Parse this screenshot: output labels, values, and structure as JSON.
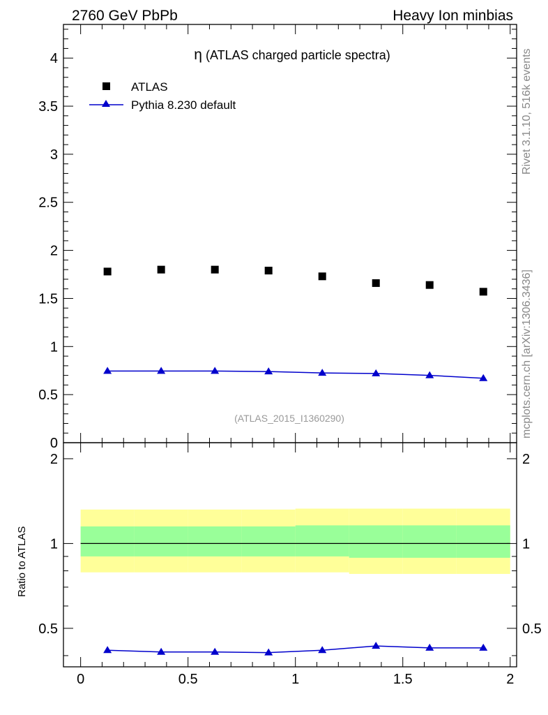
{
  "header": {
    "left": "2760 GeV PbPb",
    "right": "Heavy Ion minbias"
  },
  "side_labels": {
    "rivet": "Rivet 3.1.10,  516k events",
    "mcplots": "mcplots.cern.ch [arXiv:1306.3436]"
  },
  "chart_data": [
    {
      "type": "scatter",
      "panel": "main",
      "title_symbol": "η",
      "title_text": " (ATLAS charged particle spectra)",
      "watermark": "(ATLAS_2015_I1360290)",
      "xlim": [
        -0.08,
        2.03
      ],
      "ylim": [
        0,
        4.35
      ],
      "x_ticks": [
        0,
        0.5,
        1,
        1.5,
        2
      ],
      "y_ticks": [
        0,
        0.5,
        1,
        1.5,
        2,
        2.5,
        3,
        3.5,
        4
      ],
      "y_tick_labels": [
        "0",
        "0.5",
        "1",
        "1.5",
        "2",
        "2.5",
        "3",
        "3.5",
        "4"
      ],
      "legend": {
        "data_label": "ATLAS",
        "mc_label": "Pythia 8.230 default"
      },
      "series": [
        {
          "name": "ATLAS",
          "style": "marker",
          "color": "#000000",
          "x": [
            0.125,
            0.375,
            0.625,
            0.875,
            1.125,
            1.375,
            1.625,
            1.875
          ],
          "y": [
            1.78,
            1.8,
            1.8,
            1.79,
            1.73,
            1.66,
            1.64,
            1.57
          ]
        },
        {
          "name": "Pythia 8.230 default",
          "style": "line-triangle",
          "color": "#0000cc",
          "x": [
            0.125,
            0.375,
            0.625,
            0.875,
            1.125,
            1.375,
            1.625,
            1.875
          ],
          "y": [
            0.745,
            0.745,
            0.745,
            0.74,
            0.725,
            0.72,
            0.7,
            0.67
          ]
        }
      ]
    },
    {
      "type": "line",
      "panel": "ratio",
      "ylabel": "Ratio to ATLAS",
      "xlim": [
        -0.08,
        2.03
      ],
      "ylim_log": [
        0.365,
        2.28
      ],
      "x_ticks": [
        0,
        0.5,
        1,
        1.5,
        2
      ],
      "x_tick_labels": [
        "0",
        "0.5",
        "1",
        "1.5",
        "2"
      ],
      "y_ticks": [
        0.5,
        1,
        2
      ],
      "y_tick_labels": [
        "0.5",
        "1",
        "2"
      ],
      "bands": {
        "x_edges": [
          0,
          0.25,
          0.5,
          0.75,
          1,
          1.25,
          1.5,
          1.75,
          2
        ],
        "stat_lo": [
          0.9,
          0.9,
          0.9,
          0.9,
          0.9,
          0.89,
          0.89,
          0.89
        ],
        "stat_hi": [
          1.15,
          1.15,
          1.15,
          1.15,
          1.16,
          1.16,
          1.16,
          1.16
        ],
        "syst_lo": [
          0.79,
          0.79,
          0.79,
          0.79,
          0.79,
          0.78,
          0.78,
          0.78
        ],
        "syst_hi": [
          1.32,
          1.32,
          1.32,
          1.32,
          1.33,
          1.33,
          1.33,
          1.33
        ],
        "stat_color": "#99ff99",
        "syst_color": "#ffff99"
      },
      "series": [
        {
          "name": "Pythia 8.230 default",
          "color": "#0000cc",
          "x": [
            0.125,
            0.375,
            0.625,
            0.875,
            1.125,
            1.375,
            1.625,
            1.875
          ],
          "y": [
            0.418,
            0.412,
            0.412,
            0.41,
            0.418,
            0.433,
            0.426,
            0.426
          ]
        }
      ]
    }
  ]
}
